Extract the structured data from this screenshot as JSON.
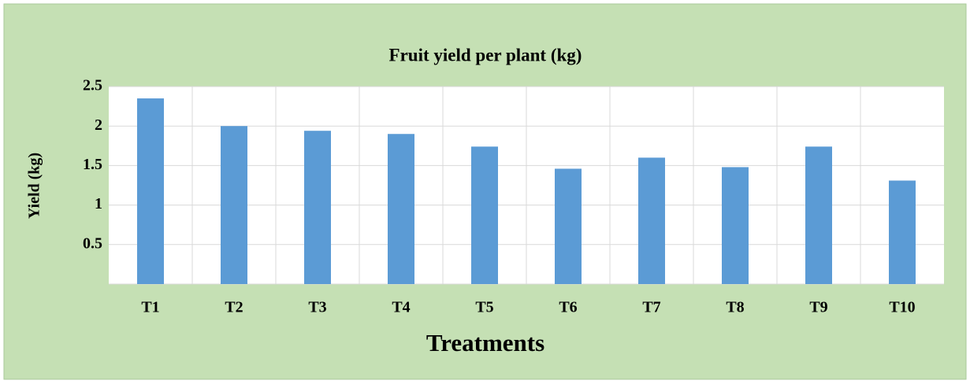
{
  "chart_data": {
    "type": "bar",
    "title": "Fruit yield per plant (kg)",
    "x_label": "Treatments",
    "y_label": "Yield (kg)",
    "categories": [
      "T1",
      "T2",
      "T3",
      "T4",
      "T5",
      "T6",
      "T7",
      "T8",
      "T9",
      "T10"
    ],
    "values": [
      2.35,
      2.0,
      1.94,
      1.9,
      1.74,
      1.46,
      1.6,
      1.48,
      1.74,
      1.31
    ],
    "color": "#5b9bd5",
    "ylim": [
      0,
      2.5
    ],
    "yticks": [
      0.5,
      1,
      1.5,
      2,
      2.5
    ],
    "grid": true
  }
}
